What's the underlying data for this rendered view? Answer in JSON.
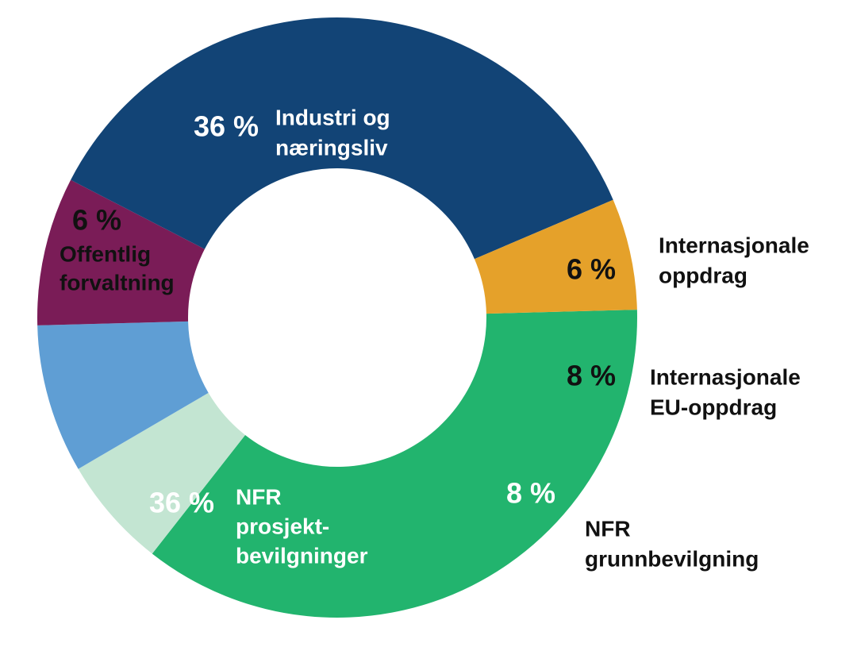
{
  "chart_data": {
    "type": "pie",
    "variant": "donut",
    "title": "",
    "slices": [
      {
        "label": [
          "Industri og",
          "næringsliv"
        ],
        "value_label": "36 %",
        "value": 36,
        "color": "#22b46e",
        "text_color": "#ffffff"
      },
      {
        "label": [
          "Internasjonale",
          "oppdrag"
        ],
        "value_label": "6 %",
        "value": 6,
        "color": "#c3e5d2",
        "text_color": "#111111"
      },
      {
        "label": [
          "Internasjonale",
          "EU-oppdrag"
        ],
        "value_label": "8 %",
        "value": 8,
        "color": "#5f9ed4",
        "text_color": "#111111"
      },
      {
        "label": [
          "NFR",
          "grunnbevilgning"
        ],
        "value_label": "8 %",
        "value": 8,
        "color": "#7a1c57",
        "text_color": "#ffffff"
      },
      {
        "label": [
          "NFR",
          "prosjekt-",
          "bevilgninger"
        ],
        "value_label": "36 %",
        "value": 36,
        "color": "#124476",
        "text_color": "#ffffff"
      },
      {
        "label": [
          "Offentlig",
          "forvaltning"
        ],
        "value_label": "6 %",
        "value": 6,
        "color": "#e5a12a",
        "text_color": "#111111"
      }
    ]
  }
}
